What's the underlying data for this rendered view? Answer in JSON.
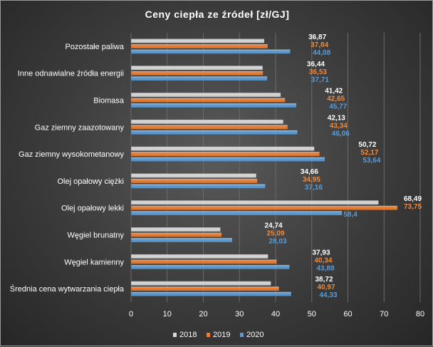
{
  "chart_data": {
    "type": "bar",
    "orientation": "horizontal",
    "title": "Ceny ciepła ze źródeł [zł/GJ]",
    "categories": [
      "Pozostałe paliwa",
      "Inne odnawialne źródła energii",
      "Biomasa",
      "Gaz ziemny zaazotowany",
      "Gaz ziemny wysokometanowy",
      "Olej opałowy ciężki",
      "Olej opałowy lekki",
      "Węgiel brunatny",
      "Węgiel kamienny",
      "Średnia cena wytwarzania ciepła"
    ],
    "series": [
      {
        "name": "2018",
        "color": "#d9d9d9",
        "label_color": "#ffffff",
        "values": [
          36.87,
          36.44,
          41.42,
          42.13,
          50.72,
          34.66,
          68.49,
          24.74,
          37.93,
          38.72
        ],
        "labels": [
          "36,87",
          "36,44",
          "41,42",
          "42,13",
          "50,72",
          "34,66",
          "68,49",
          "24,74",
          "37,93",
          "38,72"
        ]
      },
      {
        "name": "2019",
        "color": "#ed7d31",
        "label_color": "#f08a3c",
        "values": [
          37.84,
          36.53,
          42.65,
          43.34,
          52.17,
          34.95,
          73.75,
          25.09,
          40.34,
          40.97
        ],
        "labels": [
          "37,84",
          "36,53",
          "42,65",
          "43,34",
          "52,17",
          "34,95",
          "73,75",
          "25,09",
          "40,34",
          "40,97"
        ]
      },
      {
        "name": "2020",
        "color": "#5b9bd5",
        "label_color": "#5b9bd5",
        "values": [
          44.08,
          37.71,
          45.77,
          46.06,
          53.64,
          37.16,
          58.4,
          28.03,
          43.88,
          44.33
        ],
        "labels": [
          "44,08",
          "37,71",
          "45,77",
          "46,06",
          "53,64",
          "37,16",
          "58,4",
          "28,03",
          "43,88",
          "44,33"
        ]
      }
    ],
    "xlim": [
      0,
      80
    ],
    "xticks": [
      "0",
      "10",
      "20",
      "30",
      "40",
      "50",
      "60",
      "70",
      "80"
    ],
    "grid": true,
    "legend_position": "bottom"
  }
}
